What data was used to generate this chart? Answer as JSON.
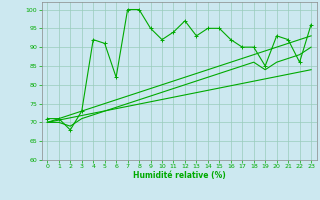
{
  "xlabel": "Humidité relative (%)",
  "background_color": "#cce8f0",
  "grid_color": "#99ccbb",
  "line_color": "#00aa00",
  "xlim": [
    -0.5,
    23.5
  ],
  "ylim": [
    60,
    102
  ],
  "yticks": [
    60,
    65,
    70,
    75,
    80,
    85,
    90,
    95,
    100
  ],
  "xticks": [
    0,
    1,
    2,
    3,
    4,
    5,
    6,
    7,
    8,
    9,
    10,
    11,
    12,
    13,
    14,
    15,
    16,
    17,
    18,
    19,
    20,
    21,
    22,
    23
  ],
  "series1_x": [
    0,
    1,
    2,
    3,
    4,
    5,
    6,
    7,
    8,
    9,
    10,
    11,
    12,
    13,
    14,
    15,
    16,
    17,
    18,
    19,
    20,
    21,
    22,
    23
  ],
  "series1_y": [
    71,
    71,
    68,
    73,
    92,
    91,
    82,
    100,
    100,
    95,
    92,
    94,
    97,
    93,
    95,
    95,
    92,
    90,
    90,
    85,
    93,
    92,
    86,
    96
  ],
  "series2_x": [
    0,
    1,
    2,
    3,
    4,
    5,
    6,
    7,
    8,
    9,
    10,
    11,
    12,
    13,
    14,
    15,
    16,
    17,
    18,
    19,
    20,
    21,
    22,
    23
  ],
  "series2_y": [
    70,
    70,
    69,
    71,
    72,
    73,
    74,
    75,
    76,
    77,
    78,
    79,
    80,
    81,
    82,
    83,
    84,
    85,
    86,
    84,
    86,
    87,
    88,
    90
  ],
  "series3_x": [
    0,
    23
  ],
  "series3_y": [
    70,
    93
  ],
  "series4_x": [
    0,
    23
  ],
  "series4_y": [
    70,
    84
  ]
}
